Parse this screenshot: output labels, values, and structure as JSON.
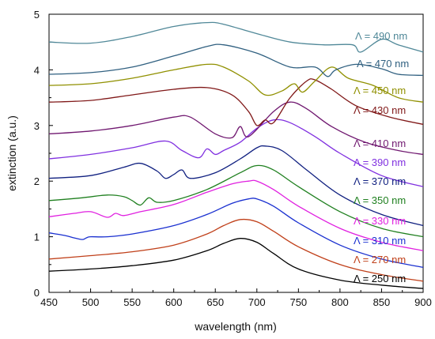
{
  "chart_data": {
    "type": "line",
    "title": "",
    "xlabel": "wavelength (nm)",
    "ylabel": "extinction (a.u.)",
    "xlim": [
      450,
      900
    ],
    "ylim": [
      0,
      5
    ],
    "xticks": [
      "450",
      "500",
      "550",
      "600",
      "650",
      "700",
      "750",
      "800",
      "850",
      "900"
    ],
    "yticks": [
      "0",
      "1",
      "2",
      "3",
      "4",
      "5"
    ],
    "grid": false,
    "legend": "none (series labelled at right edge)",
    "series": [
      {
        "name": "Λ = 250 nm",
        "color": "#000000",
        "x": [
          450,
          500,
          550,
          600,
          640,
          660,
          680,
          700,
          720,
          750,
          800,
          850,
          900
        ],
        "y": [
          0.38,
          0.42,
          0.48,
          0.58,
          0.75,
          0.88,
          0.97,
          0.9,
          0.7,
          0.42,
          0.22,
          0.13,
          0.07
        ]
      },
      {
        "name": "Λ = 270 nm",
        "color": "#c0401a",
        "x": [
          450,
          500,
          550,
          600,
          640,
          660,
          680,
          700,
          720,
          750,
          800,
          850,
          900
        ],
        "y": [
          0.6,
          0.66,
          0.73,
          0.85,
          1.05,
          1.2,
          1.31,
          1.27,
          1.1,
          0.82,
          0.5,
          0.32,
          0.2
        ]
      },
      {
        "name": "Λ = 310 nm",
        "color": "#1a30d0",
        "x": [
          450,
          470,
          480,
          490,
          495,
          500,
          520,
          550,
          600,
          640,
          670,
          690,
          700,
          720,
          750,
          800,
          850,
          900
        ],
        "y": [
          1.07,
          1.02,
          0.98,
          0.95,
          0.98,
          1.0,
          1.0,
          1.05,
          1.2,
          1.4,
          1.6,
          1.68,
          1.68,
          1.55,
          1.25,
          0.85,
          0.6,
          0.45
        ]
      },
      {
        "name": "Λ = 330 nm",
        "color": "#e020e0",
        "x": [
          450,
          480,
          500,
          520,
          530,
          540,
          560,
          600,
          640,
          670,
          690,
          700,
          720,
          750,
          800,
          850,
          900
        ],
        "y": [
          1.36,
          1.42,
          1.45,
          1.35,
          1.42,
          1.38,
          1.45,
          1.58,
          1.8,
          1.95,
          2.0,
          2.0,
          1.85,
          1.55,
          1.15,
          0.9,
          0.75
        ]
      },
      {
        "name": "Λ = 350 nm",
        "color": "#208020",
        "x": [
          450,
          490,
          520,
          540,
          550,
          560,
          570,
          580,
          600,
          640,
          680,
          700,
          720,
          750,
          800,
          850,
          900
        ],
        "y": [
          1.65,
          1.7,
          1.75,
          1.72,
          1.65,
          1.57,
          1.7,
          1.62,
          1.65,
          1.85,
          2.15,
          2.28,
          2.2,
          1.9,
          1.45,
          1.15,
          1.0
        ]
      },
      {
        "name": "Λ = 370 nm",
        "color": "#102080",
        "x": [
          450,
          500,
          540,
          560,
          580,
          590,
          600,
          610,
          620,
          650,
          680,
          700,
          710,
          730,
          760,
          800,
          850,
          900
        ],
        "y": [
          2.05,
          2.1,
          2.25,
          2.32,
          2.18,
          2.05,
          2.12,
          2.2,
          2.05,
          2.15,
          2.4,
          2.6,
          2.63,
          2.55,
          2.2,
          1.75,
          1.4,
          1.2
        ]
      },
      {
        "name": "Λ = 390 nm",
        "color": "#8030e0",
        "x": [
          450,
          500,
          550,
          590,
          610,
          630,
          640,
          650,
          660,
          680,
          700,
          720,
          740,
          770,
          800,
          850,
          900
        ],
        "y": [
          2.4,
          2.48,
          2.6,
          2.72,
          2.55,
          2.42,
          2.58,
          2.48,
          2.55,
          2.7,
          2.95,
          3.1,
          3.05,
          2.8,
          2.5,
          2.1,
          1.9
        ]
      },
      {
        "name": "Λ = 410 nm",
        "color": "#701870",
        "x": [
          450,
          500,
          550,
          600,
          620,
          650,
          670,
          680,
          690,
          720,
          740,
          760,
          790,
          830,
          870,
          900
        ],
        "y": [
          2.85,
          2.9,
          3.0,
          3.15,
          3.15,
          2.85,
          2.78,
          2.98,
          2.8,
          3.25,
          3.42,
          3.3,
          2.98,
          2.7,
          2.55,
          2.48
        ]
      },
      {
        "name": "Λ = 430 nm",
        "color": "#801818",
        "x": [
          450,
          500,
          550,
          600,
          640,
          670,
          690,
          700,
          710,
          720,
          740,
          760,
          770,
          790,
          820,
          860,
          900
        ],
        "y": [
          3.42,
          3.45,
          3.55,
          3.65,
          3.68,
          3.55,
          3.25,
          3.0,
          3.1,
          3.05,
          3.5,
          3.8,
          3.82,
          3.65,
          3.35,
          3.15,
          3.02
        ]
      },
      {
        "name": "Λ = 450 nm",
        "color": "#909000",
        "x": [
          450,
          500,
          550,
          600,
          640,
          660,
          690,
          710,
          730,
          745,
          755,
          770,
          790,
          810,
          840,
          870,
          900
        ],
        "y": [
          3.72,
          3.75,
          3.85,
          4.0,
          4.1,
          4.05,
          3.8,
          3.55,
          3.62,
          3.75,
          3.6,
          3.8,
          4.05,
          3.85,
          3.72,
          3.5,
          3.42
        ]
      },
      {
        "name": "Λ = 470 nm",
        "color": "#306080",
        "x": [
          450,
          500,
          550,
          600,
          640,
          660,
          700,
          740,
          770,
          785,
          795,
          820,
          850,
          870,
          900
        ],
        "y": [
          3.92,
          3.95,
          4.05,
          4.25,
          4.42,
          4.45,
          4.3,
          4.05,
          4.05,
          3.88,
          4.0,
          4.1,
          4.02,
          3.92,
          3.9
        ]
      },
      {
        "name": "Λ = 490 nm",
        "color": "#508898",
        "x": [
          450,
          500,
          550,
          600,
          640,
          660,
          700,
          740,
          780,
          815,
          825,
          850,
          870,
          900
        ],
        "y": [
          4.5,
          4.48,
          4.6,
          4.78,
          4.85,
          4.82,
          4.65,
          4.5,
          4.45,
          4.45,
          4.32,
          4.55,
          4.45,
          4.32
        ]
      }
    ]
  },
  "labels": {
    "s250": "Λ = 250 nm",
    "s270": "Λ = 270 nm",
    "s310": "Λ = 310 nm",
    "s330": "Λ = 330 nm",
    "s350": "Λ = 350 nm",
    "s370": "Λ = 370 nm",
    "s390": "Λ = 390 nm",
    "s410": "Λ = 410 nm",
    "s430": "Λ = 430 nm",
    "s450": "Λ = 450 nm",
    "s470": "Λ = 470 nm",
    "s490": "Λ = 490 nm"
  }
}
